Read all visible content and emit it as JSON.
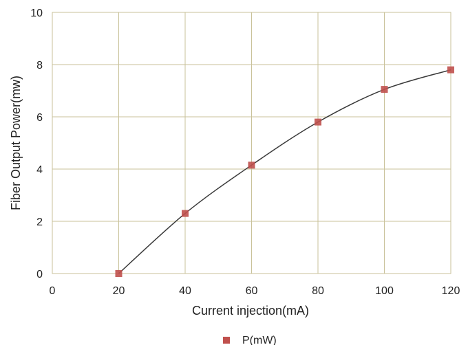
{
  "chart_data": {
    "type": "scatter",
    "title": "",
    "xlabel": "Current injection(mA)",
    "ylabel": "Fiber Output Power(mw)",
    "xlim": [
      0,
      120
    ],
    "ylim": [
      0,
      10
    ],
    "xticks": [
      "0",
      "20",
      "40",
      "60",
      "80",
      "100",
      "120"
    ],
    "yticks": [
      "0",
      "2",
      "4",
      "6",
      "8",
      "10"
    ],
    "grid": true,
    "legend_position": "bottom",
    "trendline": "smooth-curve",
    "series": [
      {
        "name": "P(mW)",
        "color": "#c0504d",
        "marker": "square",
        "x": [
          20,
          40,
          60,
          80,
          100,
          120
        ],
        "y": [
          0,
          2.3,
          4.15,
          5.8,
          7.05,
          7.8
        ]
      }
    ]
  }
}
